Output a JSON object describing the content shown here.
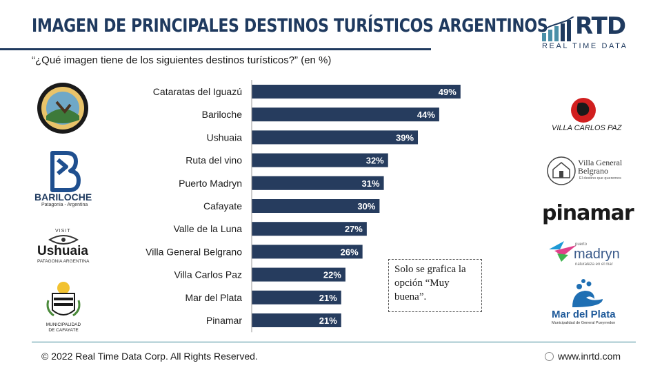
{
  "header": {
    "title": "IMAGEN DE PRINCIPALES DESTINOS TURÍSTICOS ARGENTINOS",
    "subtitle": "“¿Qué imagen tiene de los siguientes destinos turísticos?” (en %)"
  },
  "brand": {
    "name": "RTD",
    "tagline": "REAL TIME DATA",
    "color": "#1f3a5f"
  },
  "chart_data": {
    "type": "bar",
    "orientation": "horizontal",
    "categories": [
      "Cataratas del Iguazú",
      "Bariloche",
      "Ushuaia",
      "Ruta del vino",
      "Puerto Madryn",
      "Cafayate",
      "Valle de la Luna",
      "Villa General Belgrano",
      "Villa Carlos Paz",
      "Mar del Plata",
      "Pinamar"
    ],
    "values": [
      49,
      44,
      39,
      32,
      31,
      30,
      27,
      26,
      22,
      21,
      21
    ],
    "value_labels": [
      "49%",
      "44%",
      "39%",
      "32%",
      "31%",
      "30%",
      "27%",
      "26%",
      "22%",
      "21%",
      "21%"
    ],
    "xlim": [
      0,
      100
    ],
    "bar_color": "#263c5e",
    "grid": false,
    "legend": "none"
  },
  "note": {
    "text": "Solo se grafica la opción “Muy buena”."
  },
  "logos": {
    "bariloche": {
      "name": "BARILOCHE",
      "sub": "Patagonia - Argentina"
    },
    "ushuaia": {
      "visit": "VISIT",
      "name": "Ushuaia",
      "sub": "PATAGONIA ARGENTINA"
    },
    "cafayate": {
      "name": "MUNICIPALIDAD DE CAFAYATE"
    },
    "villa_carlos_paz": {
      "name": "VILLA CARLOS PAZ"
    },
    "villa_general_belgrano": {
      "name": "Villa General Belgrano",
      "sub": "El destino que queremos"
    },
    "pinamar": {
      "name": "pinamar"
    },
    "madryn": {
      "small": "puerto",
      "name": "madryn",
      "sub": "naturaleza en el mar"
    },
    "mar_del_plata": {
      "name": "Mar del Plata",
      "sub": "Municipalidad de General Pueyrredon"
    }
  },
  "footer": {
    "copyright": "© 2022 Real Time Data Corp. All Rights Reserved.",
    "website": "www.inrtd.com"
  }
}
